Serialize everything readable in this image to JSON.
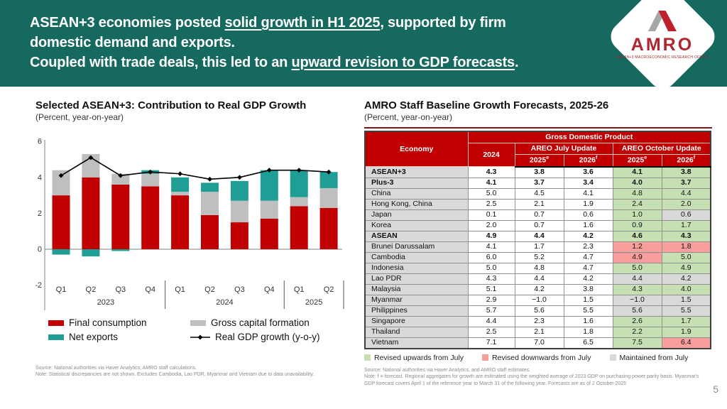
{
  "page_number": "5",
  "headline": {
    "l1_pre": "ASEAN+3 economies posted ",
    "l1_u": "solid growth in H1 2025",
    "l1_post": ", supported by firm",
    "l2": "domestic demand and exports.",
    "l3_pre": "Coupled with trade deals, this led to an ",
    "l3_u": "upward revision to GDP forecasts",
    "l3_post": "."
  },
  "logo": {
    "text": "AMRO",
    "tagline": "ASEAN+3 MACROECONOMIC RESEARCH OFFICE",
    "mark_gray": "#a6a6a6",
    "mark_red": "#c0202c"
  },
  "colors": {
    "band_teal": "#15695e",
    "header_red": "#c00000"
  },
  "chart_data": {
    "type": "bar",
    "stacked": true,
    "title": "Selected ASEAN+3: Contribution to Real GDP Growth",
    "subtitle": "(Percent, year-on-year)",
    "categories": [
      "Q1",
      "Q2",
      "Q3",
      "Q4",
      "Q1",
      "Q2",
      "Q3",
      "Q4",
      "Q1",
      "Q2"
    ],
    "year_groups": [
      {
        "label": "2023",
        "count": 4
      },
      {
        "label": "2024",
        "count": 4
      },
      {
        "label": "2025",
        "count": 2
      }
    ],
    "series": [
      {
        "name": "Final consumption",
        "color": "#c00000",
        "values": [
          3.0,
          4.0,
          3.6,
          3.5,
          3.0,
          1.9,
          1.5,
          1.7,
          2.4,
          2.3
        ]
      },
      {
        "name": "Gross capital formation",
        "color": "#bfbfbf",
        "values": [
          1.4,
          1.3,
          0.6,
          0.7,
          0.2,
          1.3,
          1.2,
          1.0,
          0.5,
          1.1
        ]
      },
      {
        "name": "Net exports",
        "color": "#1f9e96",
        "values": [
          -0.3,
          -0.4,
          -0.1,
          0.2,
          0.8,
          0.5,
          1.1,
          1.7,
          1.5,
          0.9
        ]
      }
    ],
    "line_series": {
      "name": "Real GDP growth (y-o-y)",
      "color": "#000000",
      "values": [
        4.1,
        5.1,
        4.1,
        4.3,
        4.2,
        3.9,
        4.0,
        4.4,
        4.4,
        4.3
      ]
    },
    "y_ticks": [
      6,
      4,
      2,
      0,
      -2
    ],
    "ylim": [
      -2.8,
      6.3
    ],
    "grid": false,
    "legend_position": "bottom",
    "source": "Source: National authorities via Haver Analytics; AMRO staff calculations.",
    "note": "Note: Statistical discrepancies are not shown. Excludes Cambodia, Lao PDR, Myanmar and Vietnam due to data unavailability."
  },
  "forecast_table": {
    "title": "AMRO Staff Baseline Growth Forecasts, 2025-26",
    "subtitle": "(Percent, year-on-year)",
    "headers": {
      "economy": "Economy",
      "gdp": "Gross Domestic Product",
      "y2024": "2024",
      "july": "AREO July Update",
      "october": "AREO October Update"
    },
    "year_cols": [
      {
        "label": "2025",
        "sup": "e"
      },
      {
        "label": "2026",
        "sup": "f"
      },
      {
        "label": "2025",
        "sup": "e"
      },
      {
        "label": "2026",
        "sup": "f"
      }
    ],
    "highlight_colors": {
      "up": "#c6e0b4",
      "down": "#f89f9d",
      "same": "#d9d9d9"
    },
    "rows": [
      {
        "economy": "ASEAN+3",
        "bold": true,
        "values": [
          "4.3",
          "3.8",
          "3.6",
          "4.1",
          "3.8"
        ],
        "oct": [
          "up",
          "up"
        ]
      },
      {
        "economy": "Plus-3",
        "bold": true,
        "values": [
          "4.1",
          "3.7",
          "3.4",
          "4.0",
          "3.7"
        ],
        "oct": [
          "up",
          "up"
        ]
      },
      {
        "economy": "China",
        "bold": false,
        "values": [
          "5.0",
          "4.5",
          "4.1",
          "4.8",
          "4.4"
        ],
        "oct": [
          "up",
          "up"
        ]
      },
      {
        "economy": "Hong Kong, China",
        "bold": false,
        "values": [
          "2.5",
          "2.1",
          "1.9",
          "2.4",
          "2.0"
        ],
        "oct": [
          "up",
          "up"
        ]
      },
      {
        "economy": "Japan",
        "bold": false,
        "values": [
          "0.1",
          "0.7",
          "0.6",
          "1.0",
          "0.6"
        ],
        "oct": [
          "up",
          "same"
        ]
      },
      {
        "economy": "Korea",
        "bold": false,
        "values": [
          "2.0",
          "0.7",
          "1.6",
          "0.9",
          "1.7"
        ],
        "oct": [
          "up",
          "up"
        ]
      },
      {
        "economy": "ASEAN",
        "bold": true,
        "values": [
          "4.9",
          "4.4",
          "4.2",
          "4.6",
          "4.3"
        ],
        "oct": [
          "up",
          "up"
        ]
      },
      {
        "economy": "Brunei Darussalam",
        "bold": false,
        "values": [
          "4.1",
          "1.7",
          "2.3",
          "1.2",
          "1.8"
        ],
        "oct": [
          "down",
          "down"
        ]
      },
      {
        "economy": "Cambodia",
        "bold": false,
        "values": [
          "6.0",
          "5.2",
          "4.7",
          "4.9",
          "5.0"
        ],
        "oct": [
          "down",
          "up"
        ]
      },
      {
        "economy": "Indonesia",
        "bold": false,
        "values": [
          "5.0",
          "4.8",
          "4.7",
          "5.0",
          "4.9"
        ],
        "oct": [
          "up",
          "up"
        ]
      },
      {
        "economy": "Lao PDR",
        "bold": false,
        "values": [
          "4.3",
          "4.4",
          "4.2",
          "4.4",
          "4.2"
        ],
        "oct": [
          "same",
          "same"
        ]
      },
      {
        "economy": "Malaysia",
        "bold": false,
        "values": [
          "5.1",
          "4.2",
          "3.8",
          "4.3",
          "4.0"
        ],
        "oct": [
          "up",
          "up"
        ]
      },
      {
        "economy": "Myanmar",
        "bold": false,
        "values": [
          "2.9",
          "−1.0",
          "1.5",
          "−1.0",
          "1.5"
        ],
        "oct": [
          "same",
          "same"
        ]
      },
      {
        "economy": "Philippines",
        "bold": false,
        "values": [
          "5.7",
          "5.6",
          "5.5",
          "5.6",
          "5.5"
        ],
        "oct": [
          "same",
          "same"
        ]
      },
      {
        "economy": "Singapore",
        "bold": false,
        "values": [
          "4.4",
          "2.3",
          "1.6",
          "2.6",
          "1.7"
        ],
        "oct": [
          "up",
          "up"
        ]
      },
      {
        "economy": "Thailand",
        "bold": false,
        "values": [
          "2.5",
          "2.1",
          "1.8",
          "2.2",
          "1.9"
        ],
        "oct": [
          "up",
          "up"
        ]
      },
      {
        "economy": "Vietnam",
        "bold": false,
        "values": [
          "7.1",
          "7.0",
          "6.5",
          "7.5",
          "6.4"
        ],
        "oct": [
          "up",
          "down"
        ]
      }
    ],
    "legend": [
      {
        "label": "Revised upwards from July",
        "type": "up"
      },
      {
        "label": "Revised downwards from July",
        "type": "down"
      },
      {
        "label": "Maintained from July",
        "type": "same"
      }
    ],
    "source": "Source: National authorities via Haver Analytics, and AMRO staff estimates.",
    "note": "Note: f = forecast. Regional aggregates for growth are estimated using the weighted average of 2023 GDP on purchasing power parity basis. Myanmar's GDP forecast covers April 1 of the reference year to March 31 of the following year. Forecasts are as of 2 October 2025"
  }
}
